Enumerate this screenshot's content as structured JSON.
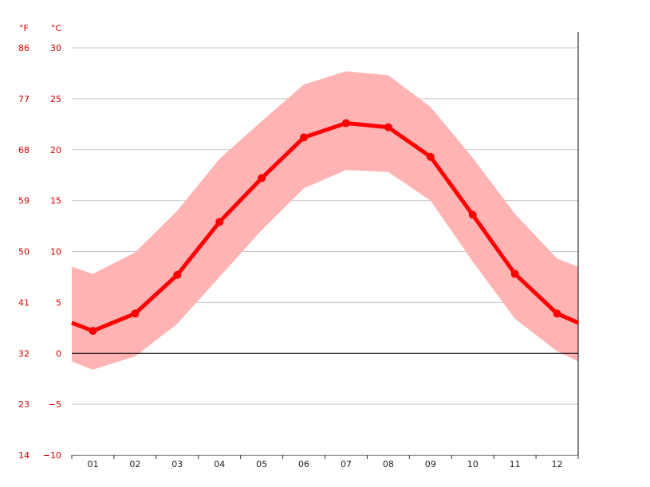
{
  "colors": {
    "line": "#ff0000",
    "band": "#ffb3b3",
    "grid": "#c8c8c8",
    "zero_line": "#000000",
    "axis_text_red": "#d40000",
    "axis_text_black": "#222222"
  },
  "chart_data": {
    "type": "line",
    "units": {
      "fahrenheit": "°F",
      "celsius": "°C"
    },
    "categories": [
      "01",
      "02",
      "03",
      "04",
      "05",
      "06",
      "07",
      "08",
      "09",
      "10",
      "11",
      "12"
    ],
    "series": [
      {
        "values": [
          2.2,
          3.9,
          7.7,
          12.9,
          17.2,
          21.2,
          22.6,
          22.2,
          19.3,
          13.6,
          7.8,
          3.9
        ]
      }
    ],
    "band": {
      "upper": [
        7.8,
        9.9,
        14.0,
        19.1,
        22.8,
        26.4,
        27.7,
        27.3,
        24.2,
        19.2,
        13.7,
        9.3
      ],
      "lower": [
        -1.6,
        -0.3,
        2.9,
        7.5,
        12.1,
        16.2,
        18.0,
        17.8,
        15.0,
        9.0,
        3.4,
        0.2
      ]
    },
    "edges": {
      "left": {
        "value": 3.0,
        "upper": 8.5,
        "lower": -0.8
      },
      "right": {
        "value": 3.0,
        "upper": 8.5,
        "lower": -0.8
      }
    },
    "ylim": [
      -10,
      30
    ],
    "y_ticks_c": [
      "30",
      "25",
      "20",
      "15",
      "10",
      "5",
      "0",
      "−5",
      "−10"
    ],
    "y_ticks_f": [
      "86",
      "77",
      "68",
      "59",
      "50",
      "41",
      "32",
      "23",
      "14"
    ],
    "grid": true
  }
}
